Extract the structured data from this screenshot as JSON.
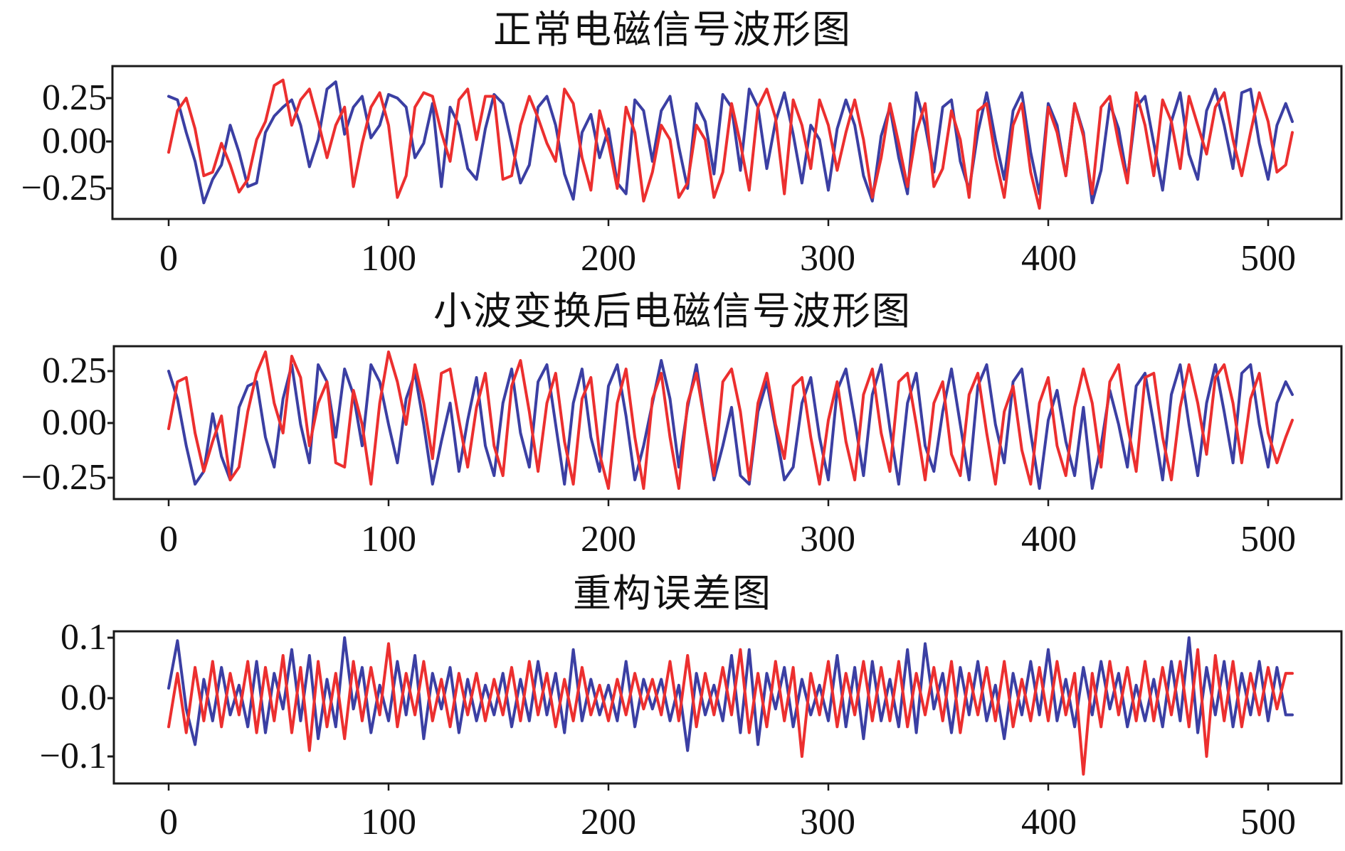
{
  "figure": {
    "panels": [
      {
        "title": "正常电磁信号波形图",
        "yticks": [
          "0.25",
          "0.00",
          "−0.25"
        ],
        "xticks": [
          "0",
          "100",
          "200",
          "300",
          "400",
          "500"
        ]
      },
      {
        "title": "小波变换后电磁信号波形图",
        "yticks": [
          "0.25",
          "0.00",
          "−0.25"
        ],
        "xticks": [
          "0",
          "100",
          "200",
          "300",
          "400",
          "500"
        ]
      },
      {
        "title": "重构误差图",
        "yticks": [
          "0.1",
          "0.0",
          "−0.1"
        ],
        "xticks": [
          "0",
          "100",
          "200",
          "300",
          "400",
          "500"
        ]
      }
    ],
    "colors": {
      "series_a": "#3b3fa3",
      "series_b": "#ec2f2f",
      "frame": "#1a1a1a"
    }
  },
  "chart_data": [
    {
      "type": "line",
      "title": "正常电磁信号波形图",
      "xlabel": "",
      "ylabel": "",
      "xlim": [
        -25,
        535
      ],
      "ylim": [
        -0.37,
        0.38
      ],
      "xticks": [
        0,
        100,
        200,
        300,
        400,
        500
      ],
      "yticks": [
        0.25,
        0.0,
        -0.25
      ],
      "grid": false,
      "legend": null,
      "x_step": 4,
      "x_start": 0,
      "x_end": 511,
      "series": [
        {
          "name": "blue",
          "color": "#3b3fa3",
          "values": [
            0.26,
            0.24,
            0.06,
            -0.1,
            -0.33,
            -0.2,
            -0.12,
            0.1,
            -0.05,
            -0.24,
            -0.22,
            0.06,
            0.15,
            0.2,
            0.24,
            0.1,
            -0.13,
            0.02,
            0.3,
            0.34,
            0.05,
            0.2,
            0.26,
            0.03,
            0.1,
            0.27,
            0.25,
            0.2,
            -0.08,
            0.0,
            0.22,
            -0.24,
            0.2,
            0.1,
            -0.14,
            -0.2,
            0.08,
            0.27,
            0.22,
            0.0,
            -0.22,
            -0.12,
            0.2,
            0.26,
            0.1,
            -0.17,
            -0.31,
            0.06,
            0.16,
            -0.08,
            0.08,
            -0.22,
            -0.28,
            0.24,
            0.18,
            -0.1,
            0.18,
            0.26,
            -0.02,
            -0.25,
            0.22,
            0.12,
            -0.17,
            0.27,
            0.2,
            -0.15,
            0.3,
            0.2,
            -0.14,
            0.12,
            0.28,
            0.05,
            -0.22,
            0.1,
            0.02,
            -0.26,
            0.08,
            0.24,
            0.1,
            -0.18,
            -0.32,
            0.04,
            0.2,
            -0.08,
            -0.28,
            0.28,
            0.1,
            -0.16,
            0.2,
            0.24,
            -0.1,
            -0.26,
            0.06,
            0.28,
            0.02,
            -0.2,
            0.18,
            0.28,
            -0.05,
            -0.28,
            0.22,
            0.1,
            -0.18,
            0.22,
            0.06,
            -0.33,
            -0.15,
            0.22,
            0.08,
            -0.2,
            0.2,
            0.26,
            0.0,
            -0.26,
            0.12,
            0.28,
            -0.06,
            -0.2,
            0.18,
            0.3,
            0.1,
            -0.14,
            0.28,
            0.3,
            0.0,
            -0.2,
            0.1,
            0.22,
            0.12
          ]
        },
        {
          "name": "red",
          "color": "#ec2f2f",
          "values": [
            -0.05,
            0.18,
            0.25,
            0.08,
            -0.18,
            -0.16,
            0.0,
            -0.12,
            -0.27,
            -0.2,
            0.02,
            0.12,
            0.32,
            0.35,
            0.1,
            0.24,
            0.3,
            0.12,
            -0.08,
            0.1,
            0.2,
            -0.24,
            0.0,
            0.2,
            0.28,
            0.1,
            -0.3,
            -0.18,
            0.2,
            0.28,
            0.26,
            0.06,
            -0.1,
            0.24,
            0.3,
            0.02,
            0.26,
            0.26,
            -0.2,
            -0.18,
            0.1,
            0.26,
            0.14,
            0.0,
            -0.1,
            0.3,
            0.22,
            -0.08,
            -0.26,
            0.18,
            0.0,
            -0.25,
            0.2,
            0.06,
            -0.32,
            -0.16,
            0.1,
            0.02,
            -0.3,
            -0.22,
            0.1,
            0.02,
            -0.3,
            -0.16,
            0.22,
            0.0,
            -0.26,
            0.2,
            0.3,
            0.14,
            -0.28,
            0.24,
            0.1,
            -0.14,
            0.24,
            0.1,
            -0.15,
            0.06,
            0.24,
            0.02,
            -0.3,
            -0.08,
            0.22,
            0.0,
            -0.24,
            0.06,
            0.22,
            -0.24,
            -0.14,
            0.18,
            0.02,
            -0.3,
            0.18,
            0.22,
            -0.08,
            -0.3,
            0.1,
            0.22,
            -0.16,
            -0.36,
            0.2,
            0.06,
            -0.18,
            0.22,
            0.04,
            -0.28,
            0.2,
            0.26,
            0.0,
            -0.22,
            0.28,
            0.1,
            -0.18,
            0.24,
            0.12,
            -0.14,
            0.26,
            0.1,
            -0.06,
            0.2,
            0.28,
            0.02,
            -0.18,
            0.06,
            0.28,
            0.12,
            -0.16,
            -0.12,
            0.06
          ]
        }
      ]
    },
    {
      "type": "line",
      "title": "小波变换后电磁信号波形图",
      "xlabel": "",
      "ylabel": "",
      "xlim": [
        -25,
        535
      ],
      "ylim": [
        -0.37,
        0.38
      ],
      "xticks": [
        0,
        100,
        200,
        300,
        400,
        500
      ],
      "yticks": [
        0.25,
        0.0,
        -0.25
      ],
      "grid": false,
      "legend": null,
      "x_step": 4,
      "x_start": 0,
      "x_end": 511,
      "series": [
        {
          "name": "blue",
          "color": "#3b3fa3",
          "values": [
            0.25,
            0.12,
            -0.1,
            -0.28,
            -0.22,
            0.05,
            -0.15,
            -0.26,
            0.08,
            0.18,
            0.2,
            -0.06,
            -0.2,
            0.12,
            0.28,
            0.0,
            -0.18,
            0.28,
            0.2,
            -0.06,
            0.26,
            0.14,
            -0.1,
            0.28,
            0.2,
            0.0,
            -0.18,
            0.12,
            0.24,
            0.0,
            -0.28,
            -0.08,
            0.1,
            -0.22,
            0.02,
            0.22,
            -0.1,
            -0.24,
            0.1,
            0.26,
            -0.04,
            -0.2,
            0.2,
            0.28,
            0.0,
            -0.28,
            0.1,
            0.26,
            -0.06,
            -0.22,
            0.18,
            0.28,
            0.04,
            -0.26,
            -0.1,
            0.1,
            0.3,
            0.12,
            -0.2,
            0.08,
            0.28,
            0.0,
            -0.26,
            -0.1,
            0.08,
            -0.24,
            -0.28,
            0.06,
            0.2,
            -0.02,
            -0.26,
            -0.2,
            0.1,
            0.22,
            -0.06,
            -0.26,
            0.16,
            0.26,
            0.02,
            -0.24,
            0.14,
            0.28,
            -0.02,
            -0.28,
            0.1,
            0.24,
            -0.1,
            -0.22,
            0.06,
            0.26,
            0.0,
            -0.26,
            0.18,
            0.28,
            0.0,
            -0.18,
            0.2,
            0.26,
            -0.04,
            -0.3,
            0.02,
            0.16,
            -0.08,
            -0.24,
            0.08,
            -0.3,
            -0.1,
            0.16,
            0.0,
            -0.2,
            0.18,
            0.24,
            0.0,
            -0.26,
            0.14,
            0.28,
            0.0,
            -0.24,
            0.1,
            0.28,
            0.06,
            -0.18,
            0.24,
            0.28,
            0.0,
            -0.2,
            0.1,
            0.2,
            0.14
          ]
        },
        {
          "name": "red",
          "color": "#ec2f2f",
          "values": [
            -0.02,
            0.2,
            0.22,
            -0.04,
            -0.22,
            -0.08,
            0.04,
            -0.26,
            -0.2,
            0.06,
            0.24,
            0.34,
            0.1,
            -0.04,
            0.32,
            0.22,
            -0.1,
            0.1,
            0.2,
            -0.18,
            -0.2,
            0.16,
            0.0,
            -0.28,
            0.1,
            0.34,
            0.2,
            0.0,
            0.28,
            0.1,
            -0.16,
            0.24,
            0.26,
            0.02,
            -0.2,
            0.08,
            0.24,
            -0.1,
            -0.24,
            0.18,
            0.3,
            0.06,
            -0.22,
            0.1,
            0.24,
            -0.08,
            -0.28,
            0.12,
            0.22,
            -0.14,
            -0.3,
            0.1,
            0.26,
            -0.06,
            -0.3,
            0.12,
            0.24,
            -0.06,
            -0.3,
            0.1,
            0.24,
            0.0,
            -0.24,
            0.2,
            0.26,
            0.06,
            -0.26,
            0.1,
            0.24,
            0.0,
            -0.16,
            0.18,
            0.22,
            -0.06,
            -0.28,
            0.02,
            0.2,
            -0.08,
            -0.26,
            0.14,
            0.26,
            -0.04,
            -0.22,
            0.2,
            0.24,
            0.0,
            -0.26,
            0.1,
            0.2,
            -0.14,
            -0.24,
            0.14,
            0.24,
            -0.04,
            -0.28,
            0.06,
            0.18,
            -0.12,
            -0.28,
            0.1,
            0.22,
            -0.1,
            -0.24,
            0.08,
            0.26,
            0.1,
            -0.2,
            0.2,
            0.28,
            0.0,
            -0.22,
            0.22,
            0.24,
            -0.06,
            -0.26,
            0.08,
            0.28,
            0.1,
            -0.14,
            0.22,
            0.28,
            0.1,
            -0.18,
            0.12,
            0.24,
            -0.04,
            -0.18,
            -0.06,
            0.02
          ]
        }
      ]
    },
    {
      "type": "line",
      "title": "重构误差图",
      "xlabel": "",
      "ylabel": "",
      "xlim": [
        -25,
        535
      ],
      "ylim": [
        -0.145,
        0.112
      ],
      "xticks": [
        0,
        100,
        200,
        300,
        400,
        500
      ],
      "yticks": [
        0.1,
        0.0,
        -0.1
      ],
      "grid": false,
      "legend": null,
      "x_step": 4,
      "x_start": 0,
      "x_end": 511,
      "series": [
        {
          "name": "blue",
          "color": "#3b3fa3",
          "values": [
            0.015,
            0.095,
            -0.02,
            -0.08,
            0.03,
            -0.04,
            0.05,
            -0.03,
            0.02,
            -0.05,
            0.06,
            -0.06,
            0.04,
            -0.02,
            0.08,
            -0.04,
            0.07,
            -0.07,
            0.03,
            -0.05,
            0.1,
            -0.02,
            0.05,
            -0.06,
            0.02,
            -0.04,
            0.06,
            -0.03,
            0.07,
            -0.07,
            0.04,
            -0.02,
            0.05,
            -0.06,
            0.03,
            -0.04,
            0.02,
            -0.03,
            0.04,
            -0.05,
            0.03,
            -0.04,
            0.06,
            -0.03,
            0.04,
            -0.06,
            0.08,
            -0.04,
            0.03,
            -0.03,
            0.02,
            -0.04,
            0.06,
            -0.05,
            0.03,
            -0.02,
            0.03,
            -0.04,
            0.02,
            -0.09,
            0.04,
            -0.03,
            0.02,
            -0.04,
            0.07,
            -0.06,
            0.08,
            -0.08,
            0.04,
            -0.02,
            0.05,
            -0.05,
            0.03,
            -0.03,
            0.02,
            -0.04,
            0.07,
            -0.05,
            0.05,
            -0.07,
            0.06,
            -0.04,
            0.03,
            -0.05,
            0.08,
            -0.06,
            0.09,
            -0.02,
            0.04,
            -0.06,
            0.05,
            -0.03,
            0.06,
            -0.04,
            0.02,
            -0.07,
            0.04,
            -0.03,
            0.06,
            -0.03,
            0.08,
            -0.04,
            0.03,
            -0.05,
            0.05,
            -0.03,
            0.06,
            -0.02,
            0.04,
            -0.05,
            0.02,
            -0.04,
            0.03,
            -0.05,
            0.06,
            -0.04,
            0.1,
            -0.06,
            0.05,
            -0.03,
            0.06,
            -0.05,
            0.04,
            -0.03,
            0.06,
            -0.04,
            0.05,
            -0.03,
            -0.03
          ]
        },
        {
          "name": "red",
          "color": "#ec2f2f",
          "values": [
            -0.05,
            0.04,
            -0.06,
            0.05,
            -0.04,
            0.06,
            -0.05,
            0.04,
            -0.03,
            0.06,
            -0.06,
            0.05,
            -0.04,
            0.07,
            -0.06,
            0.05,
            -0.09,
            0.06,
            -0.05,
            0.04,
            -0.07,
            0.06,
            -0.04,
            0.05,
            -0.03,
            0.09,
            -0.05,
            0.04,
            -0.03,
            0.06,
            -0.04,
            0.03,
            -0.05,
            0.04,
            -0.03,
            0.04,
            -0.04,
            0.03,
            -0.03,
            0.05,
            -0.04,
            0.06,
            -0.03,
            0.04,
            -0.05,
            0.03,
            -0.04,
            0.05,
            -0.03,
            0.02,
            -0.04,
            0.03,
            -0.03,
            0.04,
            -0.02,
            0.03,
            -0.03,
            0.06,
            -0.04,
            0.07,
            -0.05,
            0.04,
            -0.03,
            0.05,
            -0.03,
            0.08,
            -0.06,
            0.04,
            -0.05,
            0.06,
            -0.04,
            0.05,
            -0.1,
            0.04,
            -0.03,
            0.06,
            -0.05,
            0.04,
            -0.03,
            0.06,
            -0.04,
            0.05,
            -0.04,
            0.06,
            -0.05,
            0.04,
            -0.03,
            0.05,
            -0.04,
            0.06,
            -0.06,
            0.04,
            -0.03,
            0.05,
            -0.04,
            0.06,
            -0.05,
            0.03,
            -0.04,
            0.05,
            -0.04,
            0.06,
            -0.03,
            0.04,
            -0.13,
            0.04,
            -0.05,
            0.06,
            -0.03,
            0.05,
            -0.04,
            0.06,
            -0.04,
            0.05,
            -0.03,
            0.06,
            -0.05,
            0.08,
            -0.1,
            0.07,
            -0.04,
            0.06,
            -0.05,
            0.04,
            -0.03,
            0.05,
            -0.02,
            0.04,
            0.04
          ]
        }
      ]
    }
  ]
}
